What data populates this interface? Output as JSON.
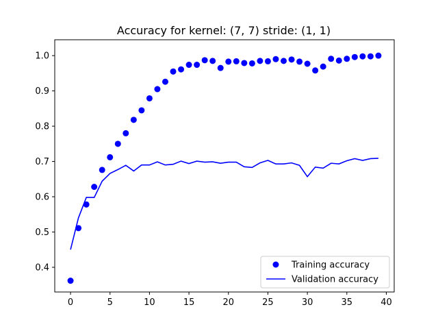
{
  "chart_data": {
    "type": "line",
    "title": "Accuracy for kernel: (7, 7) stride: (1, 1)",
    "xlabel": "",
    "ylabel": "",
    "xlim": [
      -2,
      41
    ],
    "ylim": [
      0.33,
      1.045
    ],
    "xticks": [
      "0",
      "5",
      "10",
      "15",
      "20",
      "25",
      "30",
      "35",
      "40"
    ],
    "yticks": [
      "0.4",
      "0.5",
      "0.6",
      "0.7",
      "0.8",
      "0.9",
      "1.0"
    ],
    "legend_position": "lower-right",
    "x": [
      0,
      1,
      2,
      3,
      4,
      5,
      6,
      7,
      8,
      9,
      10,
      11,
      12,
      13,
      14,
      15,
      16,
      17,
      18,
      19,
      20,
      21,
      22,
      23,
      24,
      25,
      26,
      27,
      28,
      29,
      30,
      31,
      32,
      33,
      34,
      35,
      36,
      37,
      38,
      39
    ],
    "series": [
      {
        "name": "Training accuracy",
        "style": "scatter",
        "color": "#0000ff",
        "values": [
          0.362,
          0.511,
          0.578,
          0.628,
          0.676,
          0.712,
          0.75,
          0.78,
          0.818,
          0.845,
          0.879,
          0.905,
          0.926,
          0.955,
          0.961,
          0.974,
          0.974,
          0.987,
          0.985,
          0.965,
          0.983,
          0.984,
          0.979,
          0.978,
          0.985,
          0.984,
          0.99,
          0.985,
          0.989,
          0.983,
          0.977,
          0.958,
          0.969,
          0.991,
          0.986,
          0.991,
          0.996,
          0.998,
          0.998,
          1.0
        ]
      },
      {
        "name": "Validation accuracy",
        "style": "line",
        "color": "#0000ff",
        "values": [
          0.45,
          0.54,
          0.598,
          0.598,
          0.644,
          0.666,
          0.677,
          0.689,
          0.673,
          0.69,
          0.69,
          0.699,
          0.69,
          0.692,
          0.701,
          0.694,
          0.701,
          0.698,
          0.699,
          0.695,
          0.698,
          0.698,
          0.685,
          0.683,
          0.696,
          0.703,
          0.693,
          0.693,
          0.696,
          0.689,
          0.657,
          0.684,
          0.681,
          0.695,
          0.693,
          0.702,
          0.708,
          0.703,
          0.708,
          0.709
        ]
      }
    ]
  }
}
